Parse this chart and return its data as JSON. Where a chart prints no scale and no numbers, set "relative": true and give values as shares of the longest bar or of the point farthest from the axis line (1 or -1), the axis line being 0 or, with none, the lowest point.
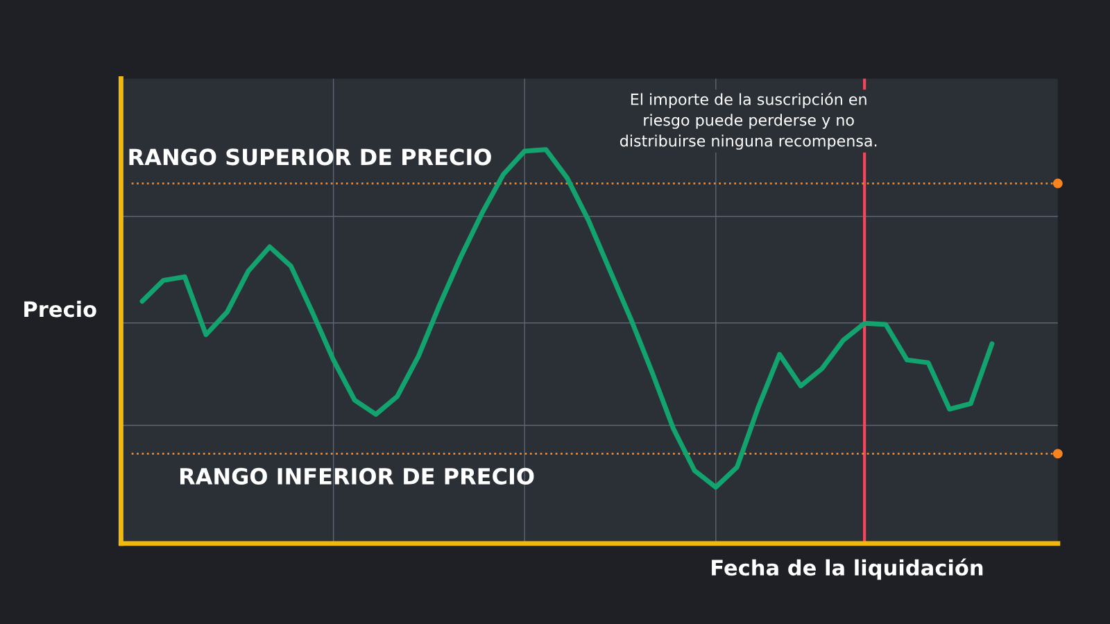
{
  "chart_data": {
    "type": "line",
    "relative": true,
    "xlabel": "Fecha de la liquidación",
    "ylabel": "Precio",
    "categories": [
      null,
      null,
      null,
      null,
      null,
      null,
      null,
      null,
      null,
      null,
      null,
      null,
      null,
      null,
      null,
      null,
      null,
      null,
      null,
      null,
      null,
      null,
      null,
      null,
      null,
      null,
      null,
      null,
      null,
      null,
      null,
      null,
      null,
      null,
      null,
      null,
      null,
      null,
      null,
      null,
      null
    ],
    "series": [
      {
        "color": "#12a36f",
        "values": [
          0.615,
          0.668,
          0.677,
          0.53,
          0.588,
          0.692,
          0.753,
          0.704,
          0.588,
          0.466,
          0.364,
          0.328,
          0.373,
          0.475,
          0.606,
          0.728,
          0.839,
          0.937,
          0.996,
          1,
          0.928,
          0.821,
          0.695,
          0.57,
          0.435,
          0.292,
          0.185,
          0.143,
          0.194,
          0.346,
          0.48,
          0.4,
          0.444,
          0.516,
          0.559,
          0.556,
          0.466,
          0.459,
          0.341,
          0.355,
          0.507
        ]
      }
    ],
    "ref_lines": [
      {
        "axis": "y",
        "value": 0.914,
        "label": "RANGO SUPERIOR DE PRECIO",
        "color": "#f7841e",
        "line_style": "dotted"
      },
      {
        "axis": "y",
        "value": 0.228,
        "label": "RANGO INFERIOR DE PRECIO",
        "color": "#f7841e",
        "line_style": "dotted"
      }
    ],
    "annotations": [
      "El importe de la suscripción en\nriesgo puede perderse y no\ndistribuirse ninguna recompensa."
    ],
    "grid": true,
    "legend": false,
    "marker": "none",
    "line_style": "solid"
  }
}
